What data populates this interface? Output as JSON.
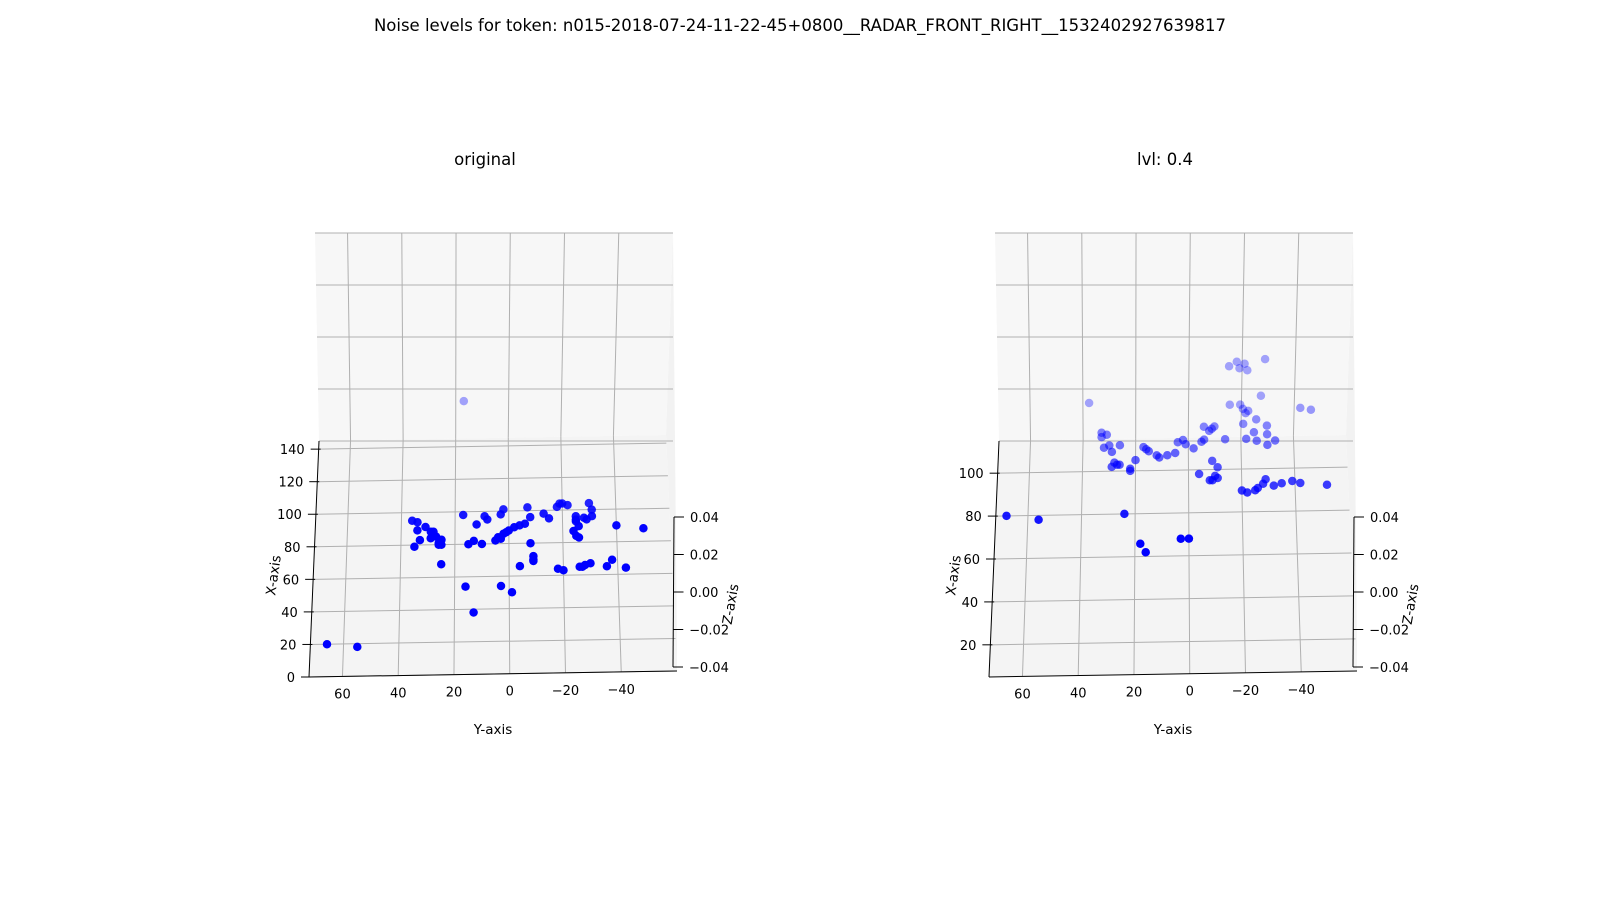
{
  "figure": {
    "suptitle": "Noise levels for token: n015-2018-07-24-11-22-45+0800__RADAR_FRONT_RIGHT__1532402927639817"
  },
  "colors": {
    "point": "#0000ff",
    "pane_side": "#f2f2f2",
    "pane_back": "#f7f7f7",
    "pane_floor": "#f4f4f4",
    "grid": "#b0b0b0",
    "axis": "#000000"
  },
  "chart_data": [
    {
      "type": "scatter",
      "projection": "3d",
      "title": "original",
      "xlabel": "X-axis",
      "ylabel": "Y-axis",
      "zlabel": "Z-axis",
      "x_ticks": [
        "0",
        "20",
        "40",
        "60",
        "80",
        "100",
        "120",
        "140"
      ],
      "y_ticks": [
        "60",
        "40",
        "20",
        "0",
        "−20",
        "−40"
      ],
      "z_ticks": [
        "0.04",
        "0.02",
        "0.00",
        "−0.02",
        "−0.04"
      ],
      "xlim": [
        0,
        145
      ],
      "ylim": [
        -60,
        72
      ],
      "zlim": [
        -0.05,
        0.05
      ],
      "grid": true,
      "points_yx": [
        [
          66,
          20
        ],
        [
          55,
          18
        ],
        [
          17,
          98
        ],
        [
          36,
          95
        ],
        [
          34,
          94
        ],
        [
          34,
          89
        ],
        [
          31,
          91
        ],
        [
          29,
          84
        ],
        [
          29,
          88
        ],
        [
          28,
          88
        ],
        [
          27,
          85
        ],
        [
          25,
          83
        ],
        [
          26,
          81
        ],
        [
          25,
          80
        ],
        [
          26,
          80
        ],
        [
          35,
          79
        ],
        [
          33,
          83
        ],
        [
          25,
          68
        ],
        [
          15,
          80
        ],
        [
          13,
          82
        ],
        [
          10,
          80
        ],
        [
          12,
          92
        ],
        [
          9,
          97
        ],
        [
          8,
          95
        ],
        [
          3,
          98
        ],
        [
          2,
          101
        ],
        [
          -7,
          102
        ],
        [
          -18,
          102
        ],
        [
          -19,
          104
        ],
        [
          -20,
          104
        ],
        [
          -22,
          103
        ],
        [
          -30,
          104
        ],
        [
          -31,
          100
        ],
        [
          -15,
          95
        ],
        [
          -13,
          98
        ],
        [
          -8,
          96
        ],
        [
          -6,
          92
        ],
        [
          -4,
          91
        ],
        [
          -2,
          90
        ],
        [
          0,
          88
        ],
        [
          1,
          87
        ],
        [
          2,
          86
        ],
        [
          4,
          84
        ],
        [
          3,
          83
        ],
        [
          5,
          82
        ],
        [
          -25,
          96
        ],
        [
          -28,
          95
        ],
        [
          -29,
          94
        ],
        [
          -25,
          94
        ],
        [
          -25,
          93
        ],
        [
          -31,
          96
        ],
        [
          -26,
          90
        ],
        [
          -24,
          87
        ],
        [
          -25,
          84
        ],
        [
          -26,
          83
        ],
        [
          -40,
          90
        ],
        [
          -50,
          88
        ],
        [
          -8,
          80
        ],
        [
          -9,
          72
        ],
        [
          -9,
          70
        ],
        [
          -9,
          69
        ],
        [
          -4,
          66
        ],
        [
          -18,
          64
        ],
        [
          -20,
          63
        ],
        [
          -26,
          65
        ],
        [
          -27,
          65
        ],
        [
          -28,
          66
        ],
        [
          -30,
          67
        ],
        [
          -36,
          65
        ],
        [
          -38,
          69
        ],
        [
          -43,
          64
        ],
        [
          16,
          54
        ],
        [
          13,
          38
        ],
        [
          3,
          54
        ],
        [
          -1,
          50
        ],
        [
          17,
          168
        ]
      ]
    },
    {
      "type": "scatter",
      "projection": "3d",
      "title": "lvl: 0.4",
      "xlabel": "X-axis",
      "ylabel": "Y-axis",
      "zlabel": "Z-axis",
      "x_ticks": [
        "20",
        "40",
        "60",
        "80",
        "100"
      ],
      "y_ticks": [
        "60",
        "40",
        "20",
        "0",
        "−20",
        "−40"
      ],
      "z_ticks": [
        "0.04",
        "0.02",
        "0.00",
        "−0.02",
        "−0.04"
      ],
      "xlim": [
        5,
        115
      ],
      "ylim": [
        -60,
        72
      ],
      "zlim": [
        -0.05,
        0.05
      ],
      "grid": true,
      "points_yx": [
        [
          68,
          80
        ],
        [
          56,
          78
        ],
        [
          24,
          80
        ],
        [
          18,
          66
        ],
        [
          16,
          62
        ],
        [
          3,
          68
        ],
        [
          0,
          68
        ],
        [
          38,
          132
        ],
        [
          33,
          118
        ],
        [
          31,
          117
        ],
        [
          33,
          116
        ],
        [
          32,
          111
        ],
        [
          30,
          112
        ],
        [
          29,
          109
        ],
        [
          26,
          112
        ],
        [
          28,
          104
        ],
        [
          29,
          102
        ],
        [
          27,
          103
        ],
        [
          26,
          103
        ],
        [
          22,
          101
        ],
        [
          22,
          100
        ],
        [
          20,
          105
        ],
        [
          17,
          111
        ],
        [
          16,
          110
        ],
        [
          15,
          109
        ],
        [
          12,
          107
        ],
        [
          11,
          106
        ],
        [
          8,
          107
        ],
        [
          5,
          108
        ],
        [
          4,
          113
        ],
        [
          2,
          114
        ],
        [
          1,
          112
        ],
        [
          -2,
          110
        ],
        [
          -5,
          113
        ],
        [
          -6,
          114
        ],
        [
          -9,
          119
        ],
        [
          -10,
          120
        ],
        [
          -6,
          120
        ],
        [
          -8,
          118
        ],
        [
          -14,
          114
        ],
        [
          -16,
          130
        ],
        [
          -20,
          130
        ],
        [
          -21,
          128
        ],
        [
          -22,
          126
        ],
        [
          -23,
          127
        ],
        [
          -26,
          123
        ],
        [
          -16,
          148
        ],
        [
          -19,
          150
        ],
        [
          -20,
          147
        ],
        [
          -22,
          149
        ],
        [
          -23,
          146
        ],
        [
          -30,
          151
        ],
        [
          -28,
          134
        ],
        [
          -21,
          121
        ],
        [
          -22,
          114
        ],
        [
          -26,
          113
        ],
        [
          -25,
          117
        ],
        [
          -30,
          120
        ],
        [
          -30,
          116
        ],
        [
          -33,
          113
        ],
        [
          -30,
          111
        ],
        [
          -43,
          128
        ],
        [
          -47,
          127
        ],
        [
          -9,
          104
        ],
        [
          -11,
          101
        ],
        [
          -11,
          96
        ],
        [
          -9,
          95
        ],
        [
          -8,
          95
        ],
        [
          -10,
          97
        ],
        [
          -4,
          98
        ],
        [
          -20,
          90
        ],
        [
          -22,
          89
        ],
        [
          -25,
          90
        ],
        [
          -26,
          91
        ],
        [
          -28,
          93
        ],
        [
          -29,
          95
        ],
        [
          -32,
          92
        ],
        [
          -35,
          93
        ],
        [
          -39,
          94
        ],
        [
          -42,
          93
        ],
        [
          -52,
          92
        ]
      ]
    }
  ]
}
